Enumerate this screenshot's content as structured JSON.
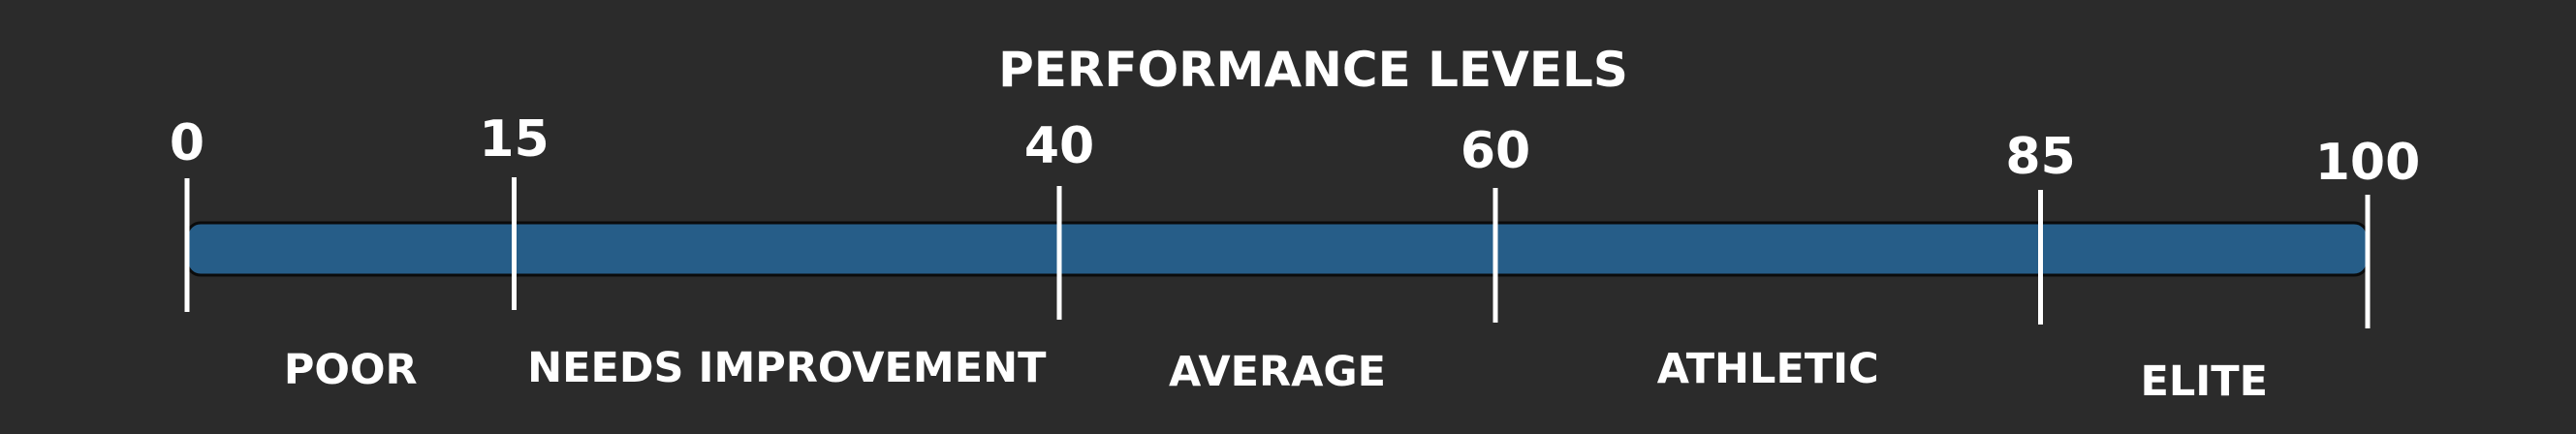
{
  "title": "PERFORMANCE LEVELS",
  "scale": {
    "min": 0,
    "max": 100,
    "ticks": [
      {
        "value": 0,
        "label": "0"
      },
      {
        "value": 15,
        "label": "15"
      },
      {
        "value": 40,
        "label": "40"
      },
      {
        "value": 60,
        "label": "60"
      },
      {
        "value": 85,
        "label": "85"
      },
      {
        "value": 100,
        "label": "100"
      }
    ],
    "levels": [
      {
        "name": "POOR",
        "from": 0,
        "to": 15
      },
      {
        "name": "NEEDS IMPROVEMENT",
        "from": 15,
        "to": 40
      },
      {
        "name": "AVERAGE",
        "from": 40,
        "to": 60
      },
      {
        "name": "ATHLETIC",
        "from": 60,
        "to": 85
      },
      {
        "name": "ELITE",
        "from": 85,
        "to": 100
      }
    ]
  },
  "colors": {
    "background": "#2b2b2b",
    "bar": "#265d88",
    "text": "#ffffff"
  }
}
